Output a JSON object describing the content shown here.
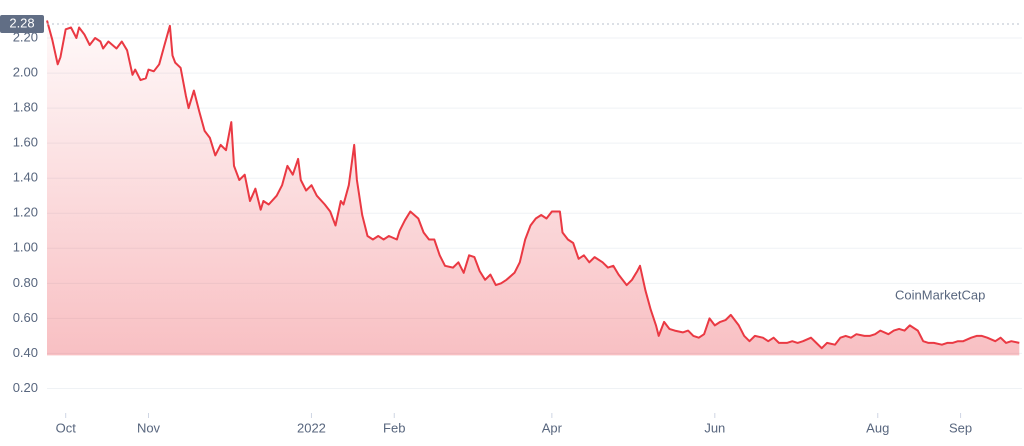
{
  "chart_data": {
    "type": "line",
    "color": "#ea3943",
    "price_badge": "2.28",
    "badge_value": 2.28,
    "watermark": "CoinMarketCap",
    "grid": true,
    "xlim": [
      0,
      365
    ],
    "ylim": [
      0.06,
      2.32
    ],
    "xticks": [
      {
        "value": 7,
        "label": "Oct"
      },
      {
        "value": 38,
        "label": "Nov"
      },
      {
        "value": 99,
        "label": "2022"
      },
      {
        "value": 130,
        "label": "Feb"
      },
      {
        "value": 189,
        "label": "Apr"
      },
      {
        "value": 250,
        "label": "Jun"
      },
      {
        "value": 311,
        "label": "Aug"
      },
      {
        "value": 342,
        "label": "Sep"
      }
    ],
    "yticks": [
      {
        "value": 0.2,
        "label": "0.20"
      },
      {
        "value": 0.4,
        "label": "0.40"
      },
      {
        "value": 0.6,
        "label": "0.60"
      },
      {
        "value": 0.8,
        "label": "0.80"
      },
      {
        "value": 1.0,
        "label": "1.00"
      },
      {
        "value": 1.2,
        "label": "1.20"
      },
      {
        "value": 1.4,
        "label": "1.40"
      },
      {
        "value": 1.6,
        "label": "1.60"
      },
      {
        "value": 1.8,
        "label": "1.80"
      },
      {
        "value": 2.0,
        "label": "2.00"
      },
      {
        "value": 2.2,
        "label": "2.20"
      }
    ],
    "x": [
      0,
      2,
      4,
      5,
      7,
      9,
      11,
      12,
      14,
      16,
      18,
      20,
      21,
      23,
      26,
      28,
      30,
      32,
      33,
      35,
      37,
      38,
      40,
      42,
      44,
      46,
      47,
      48,
      50,
      52,
      53,
      55,
      57,
      59,
      61,
      63,
      65,
      67,
      69,
      70,
      72,
      74,
      76,
      78,
      80,
      81,
      83,
      86,
      88,
      90,
      92,
      94,
      95,
      97,
      99,
      101,
      104,
      106,
      108,
      110,
      111,
      113,
      115,
      116,
      118,
      120,
      122,
      124,
      126,
      128,
      131,
      132,
      134,
      136,
      139,
      141,
      143,
      145,
      147,
      149,
      152,
      154,
      156,
      158,
      160,
      162,
      164,
      166,
      168,
      170,
      172,
      175,
      177,
      179,
      181,
      183,
      185,
      187,
      189,
      192,
      193,
      195,
      197,
      199,
      201,
      203,
      205,
      208,
      210,
      212,
      214,
      217,
      219,
      221,
      222,
      224,
      226,
      228,
      229,
      231,
      233,
      235,
      238,
      240,
      242,
      244,
      246,
      248,
      250,
      252,
      254,
      256,
      259,
      261,
      263,
      265,
      268,
      270,
      272,
      274,
      277,
      279,
      281,
      283,
      286,
      288,
      290,
      292,
      295,
      297,
      299,
      301,
      303,
      306,
      308,
      310,
      312,
      315,
      317,
      319,
      321,
      323,
      326,
      328,
      330,
      332,
      335,
      337,
      339,
      341,
      343,
      346,
      348,
      350,
      352,
      355,
      357,
      359,
      361,
      364
    ],
    "values": [
      2.3,
      2.19,
      2.05,
      2.09,
      2.25,
      2.26,
      2.2,
      2.26,
      2.22,
      2.16,
      2.2,
      2.18,
      2.14,
      2.18,
      2.14,
      2.18,
      2.13,
      1.99,
      2.02,
      1.96,
      1.97,
      2.02,
      2.01,
      2.05,
      2.16,
      2.27,
      2.1,
      2.06,
      2.03,
      1.87,
      1.8,
      1.9,
      1.78,
      1.67,
      1.63,
      1.53,
      1.59,
      1.56,
      1.72,
      1.47,
      1.39,
      1.42,
      1.27,
      1.34,
      1.22,
      1.27,
      1.25,
      1.3,
      1.36,
      1.47,
      1.42,
      1.51,
      1.39,
      1.33,
      1.36,
      1.3,
      1.25,
      1.21,
      1.13,
      1.27,
      1.25,
      1.36,
      1.59,
      1.39,
      1.19,
      1.07,
      1.05,
      1.07,
      1.05,
      1.07,
      1.05,
      1.1,
      1.16,
      1.21,
      1.17,
      1.09,
      1.05,
      1.05,
      0.96,
      0.9,
      0.89,
      0.92,
      0.86,
      0.96,
      0.95,
      0.87,
      0.82,
      0.85,
      0.79,
      0.8,
      0.82,
      0.86,
      0.92,
      1.05,
      1.13,
      1.17,
      1.19,
      1.17,
      1.21,
      1.21,
      1.09,
      1.05,
      1.03,
      0.94,
      0.96,
      0.92,
      0.95,
      0.92,
      0.89,
      0.9,
      0.85,
      0.79,
      0.82,
      0.87,
      0.9,
      0.76,
      0.65,
      0.56,
      0.5,
      0.58,
      0.54,
      0.53,
      0.52,
      0.53,
      0.5,
      0.49,
      0.51,
      0.6,
      0.56,
      0.58,
      0.59,
      0.62,
      0.56,
      0.5,
      0.47,
      0.5,
      0.49,
      0.47,
      0.49,
      0.46,
      0.46,
      0.47,
      0.46,
      0.47,
      0.49,
      0.46,
      0.43,
      0.46,
      0.45,
      0.49,
      0.5,
      0.49,
      0.51,
      0.5,
      0.5,
      0.51,
      0.53,
      0.51,
      0.53,
      0.54,
      0.53,
      0.56,
      0.53,
      0.47,
      0.46,
      0.46,
      0.45,
      0.46,
      0.46,
      0.47,
      0.47,
      0.49,
      0.5,
      0.5,
      0.49,
      0.47,
      0.49,
      0.46,
      0.47,
      0.46
    ]
  }
}
